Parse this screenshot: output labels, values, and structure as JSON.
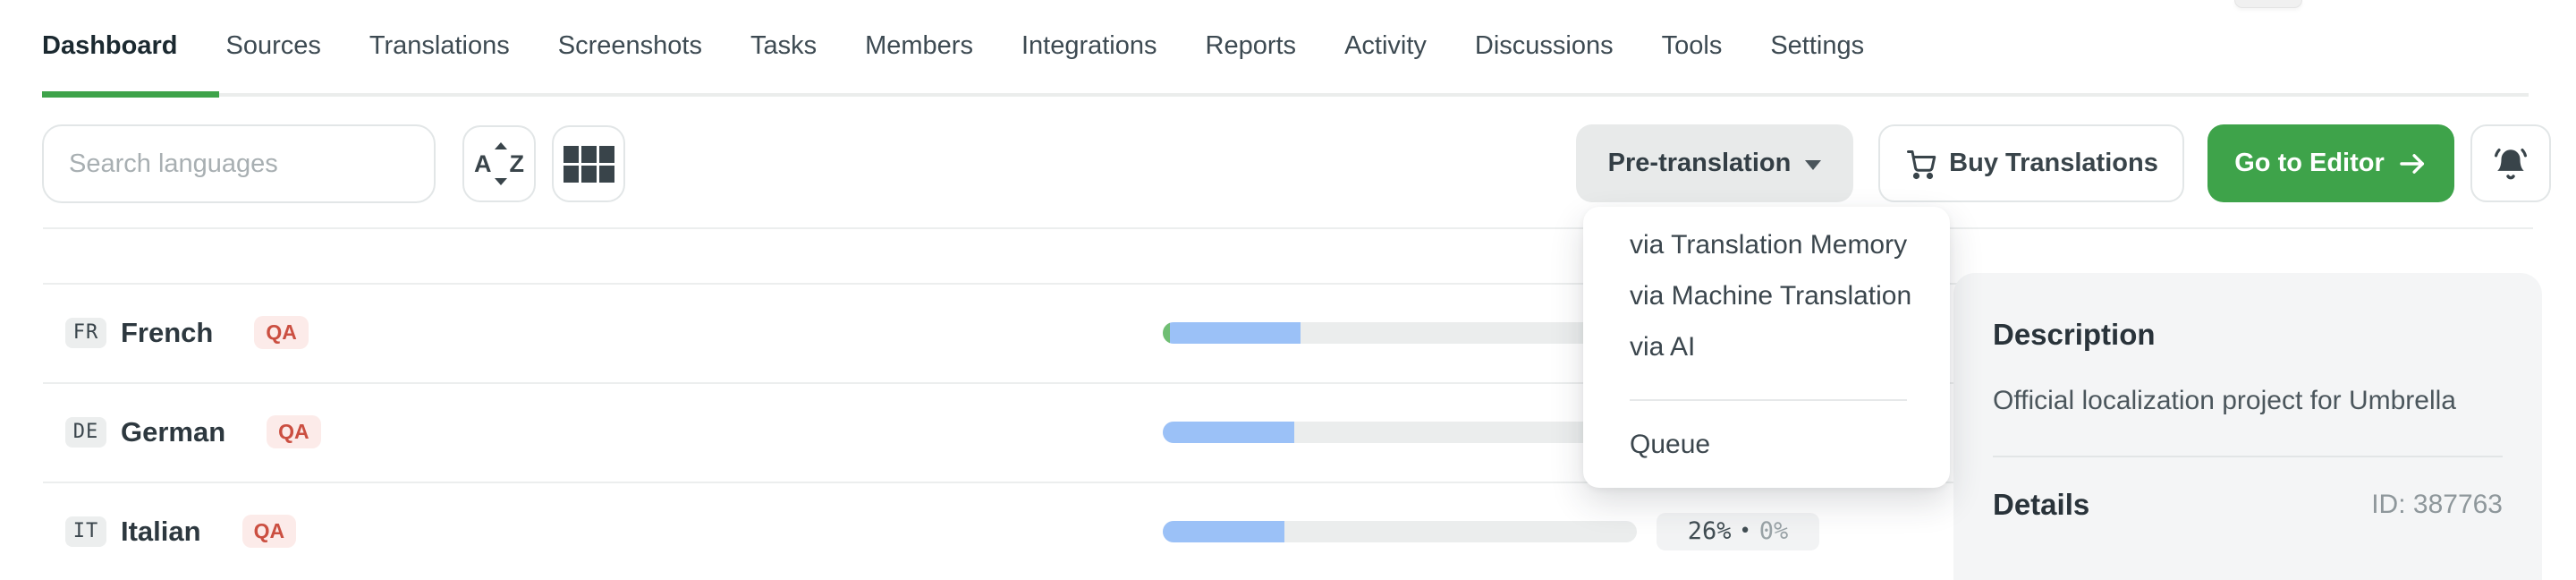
{
  "nav": {
    "items": [
      {
        "label": "Dashboard",
        "active": true
      },
      {
        "label": "Sources"
      },
      {
        "label": "Translations"
      },
      {
        "label": "Screenshots"
      },
      {
        "label": "Tasks"
      },
      {
        "label": "Members"
      },
      {
        "label": "Integrations"
      },
      {
        "label": "Reports"
      },
      {
        "label": "Activity"
      },
      {
        "label": "Discussions"
      },
      {
        "label": "Tools"
      },
      {
        "label": "Settings"
      }
    ]
  },
  "toolbar": {
    "search_placeholder": "Search languages",
    "pretranslation_label": "Pre-translation",
    "buy_translations_label": "Buy Translations",
    "go_to_editor_label": "Go to Editor"
  },
  "pretranslation_menu": {
    "items": [
      "via Translation Memory",
      "via Machine Translation",
      "via AI"
    ],
    "queue_label": "Queue"
  },
  "languages": [
    {
      "code": "FR",
      "name": "French",
      "qa_badge": "QA",
      "bar": {
        "translated_pct": 27.5,
        "approved_pct": 1.5
      }
    },
    {
      "code": "DE",
      "name": "German",
      "qa_badge": "QA",
      "bar": {
        "translated_pct": 27.7,
        "approved_pct": 0
      }
    },
    {
      "code": "IT",
      "name": "Italian",
      "qa_badge": "QA",
      "bar": {
        "translated_pct": 25.7,
        "approved_pct": 0
      },
      "stats": {
        "translated": "26%",
        "separator": "•",
        "approved": "0%"
      }
    }
  ],
  "side_panel": {
    "description_title": "Description",
    "description_text": "Official localization project for Umbrella",
    "details_title": "Details",
    "project_id": "ID: 387763"
  },
  "colors": {
    "accent_green": "#3EA34A",
    "progress_blue": "#9BC1F7",
    "progress_approved_green": "#6FBE73",
    "qa_text_red": "#CB4F41",
    "qa_bg_pink": "#FCEBE9"
  }
}
